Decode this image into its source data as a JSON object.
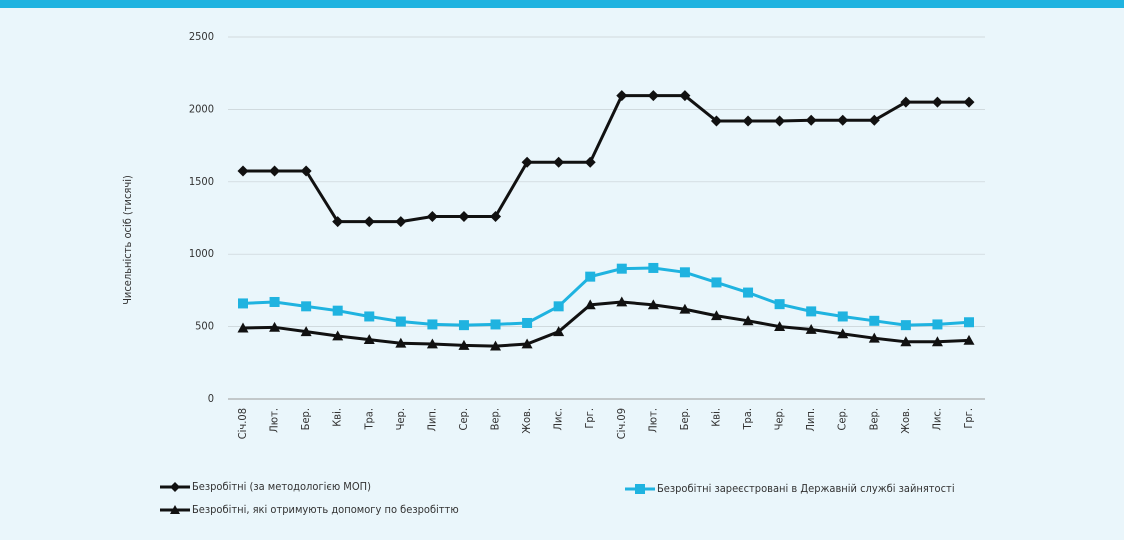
{
  "chart_data": {
    "type": "line",
    "y_label": "Чисельність осіб (тисячі)",
    "categories": [
      "Січ.08",
      "Лют.",
      "Бер.",
      "Кві.",
      "Тра.",
      "Чер.",
      "Лип.",
      "Сер.",
      "Вер.",
      "Жов.",
      "Лис.",
      "Грг.",
      "Січ.09",
      "Лют.",
      "Бер.",
      "Кві.",
      "Тра.",
      "Чер.",
      "Лип.",
      "Сер.",
      "Вер.",
      "Жов.",
      "Лис.",
      "Грг."
    ],
    "series": [
      {
        "name": "Безробітні (за методологією МОП)",
        "color": "#111111",
        "marker": "diamond",
        "values": [
          1575,
          1575,
          1575,
          1225,
          1225,
          1225,
          1260,
          1260,
          1260,
          1635,
          1635,
          1635,
          2095,
          2095,
          2095,
          1920,
          1920,
          1920,
          1925,
          1925,
          1925,
          2050,
          2050,
          2050
        ]
      },
      {
        "name": "Безробітні зареєстровані в Державній службі зайнятості",
        "color": "#1fb3e0",
        "marker": "square",
        "values": [
          660,
          670,
          640,
          610,
          570,
          535,
          515,
          510,
          515,
          525,
          640,
          845,
          900,
          905,
          875,
          805,
          735,
          655,
          605,
          570,
          540,
          510,
          515,
          530
        ]
      },
      {
        "name": "Безробітні, які отримують допомогу по безробіттю",
        "color": "#111111",
        "marker": "triangle",
        "values": [
          490,
          495,
          465,
          435,
          410,
          385,
          380,
          370,
          365,
          380,
          465,
          650,
          670,
          650,
          620,
          575,
          540,
          500,
          480,
          450,
          420,
          395,
          395,
          405
        ]
      }
    ],
    "ylim": [
      0,
      2500
    ],
    "yticks": [
      0,
      500,
      1000,
      1500,
      2000,
      2500
    ],
    "grid": true
  }
}
